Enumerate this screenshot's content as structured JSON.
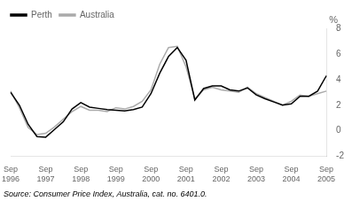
{
  "chart_data": {
    "type": "line",
    "subtitle": "Source: Consumer Price Index, Australia, cat. no. 6401.0.",
    "ylabel": "%",
    "categories": [
      "Sep\n1996",
      null,
      null,
      null,
      "Sep\n1997",
      null,
      null,
      null,
      "Sep\n1998",
      null,
      null,
      null,
      "Sep\n1999",
      null,
      null,
      null,
      "Sep\n2000",
      null,
      null,
      null,
      "Sep\n2001",
      null,
      null,
      null,
      "Sep\n2002",
      null,
      null,
      null,
      "Sep\n2003",
      null,
      null,
      null,
      "Sep\n2004",
      null,
      null,
      null,
      "Sep\n2005"
    ],
    "series": [
      {
        "name": "Perth",
        "color": "#000000",
        "values": [
          3.0,
          2.0,
          0.5,
          -0.45,
          -0.5,
          0.1,
          0.7,
          1.7,
          2.2,
          1.85,
          1.75,
          1.65,
          1.6,
          1.55,
          1.65,
          1.85,
          2.9,
          4.5,
          5.8,
          6.5,
          5.5,
          2.4,
          3.3,
          3.5,
          3.5,
          3.2,
          3.1,
          3.35,
          2.8,
          2.5,
          2.25,
          2.0,
          2.1,
          2.7,
          2.7,
          3.1,
          4.3
        ]
      },
      {
        "name": "Australia",
        "color": "#aaaaaa",
        "values": [
          3.1,
          1.8,
          0.25,
          -0.3,
          -0.2,
          0.3,
          0.9,
          1.5,
          1.9,
          1.6,
          1.6,
          1.5,
          1.8,
          1.7,
          1.9,
          2.3,
          3.2,
          5.2,
          6.5,
          6.6,
          5.0,
          2.5,
          3.2,
          3.4,
          3.2,
          3.1,
          3.0,
          3.4,
          2.9,
          2.6,
          2.3,
          2.0,
          2.3,
          2.8,
          2.7,
          2.9,
          3.1
        ]
      }
    ],
    "ylim": [
      -2,
      8
    ],
    "yticks": [
      -2,
      0,
      2,
      4,
      6,
      8
    ],
    "grid": false,
    "legend": "upper left"
  }
}
